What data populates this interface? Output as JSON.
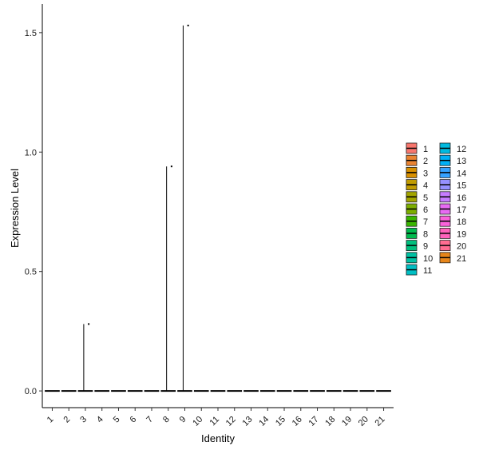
{
  "chart_data": {
    "type": "violin",
    "xlabel": "Identity",
    "ylabel": "Expression Level",
    "categories": [
      "1",
      "2",
      "3",
      "4",
      "5",
      "6",
      "7",
      "8",
      "9",
      "10",
      "11",
      "12",
      "13",
      "14",
      "15",
      "16",
      "17",
      "18",
      "19",
      "20",
      "21"
    ],
    "ylim": [
      -0.07,
      1.62
    ],
    "yticks": [
      0.0,
      0.5,
      1.0,
      1.5
    ],
    "ytick_labels": [
      "0.0",
      "0.5",
      "1.0",
      "1.5"
    ],
    "max_values": [
      0,
      0,
      0.28,
      0,
      0,
      0,
      0,
      0.94,
      1.53,
      0,
      0,
      0,
      0,
      0,
      0,
      0,
      0,
      0,
      0,
      0,
      0
    ],
    "outliers": [
      {
        "category": "3",
        "value": 0.28
      },
      {
        "category": "8",
        "value": 0.94
      },
      {
        "category": "9",
        "value": 1.53
      }
    ],
    "colors": [
      "#F8766D",
      "#EA8331",
      "#D89000",
      "#C09B00",
      "#A3A500",
      "#7CAE00",
      "#39B600",
      "#00BB4E",
      "#00BF7D",
      "#00C1A3",
      "#00BFC4",
      "#00BAE0",
      "#00B0F6",
      "#35A2FF",
      "#9590FF",
      "#C77CFF",
      "#E76BF3",
      "#FA62DB",
      "#FF62BC",
      "#FF6C91",
      "#E7861B"
    ],
    "legend": {
      "position": "right",
      "columns": [
        [
          "1",
          "2",
          "3",
          "4",
          "5",
          "6",
          "7",
          "8",
          "9",
          "10",
          "11"
        ],
        [
          "12",
          "13",
          "14",
          "15",
          "16",
          "17",
          "18",
          "19",
          "20",
          "21"
        ]
      ]
    },
    "grid": false
  }
}
